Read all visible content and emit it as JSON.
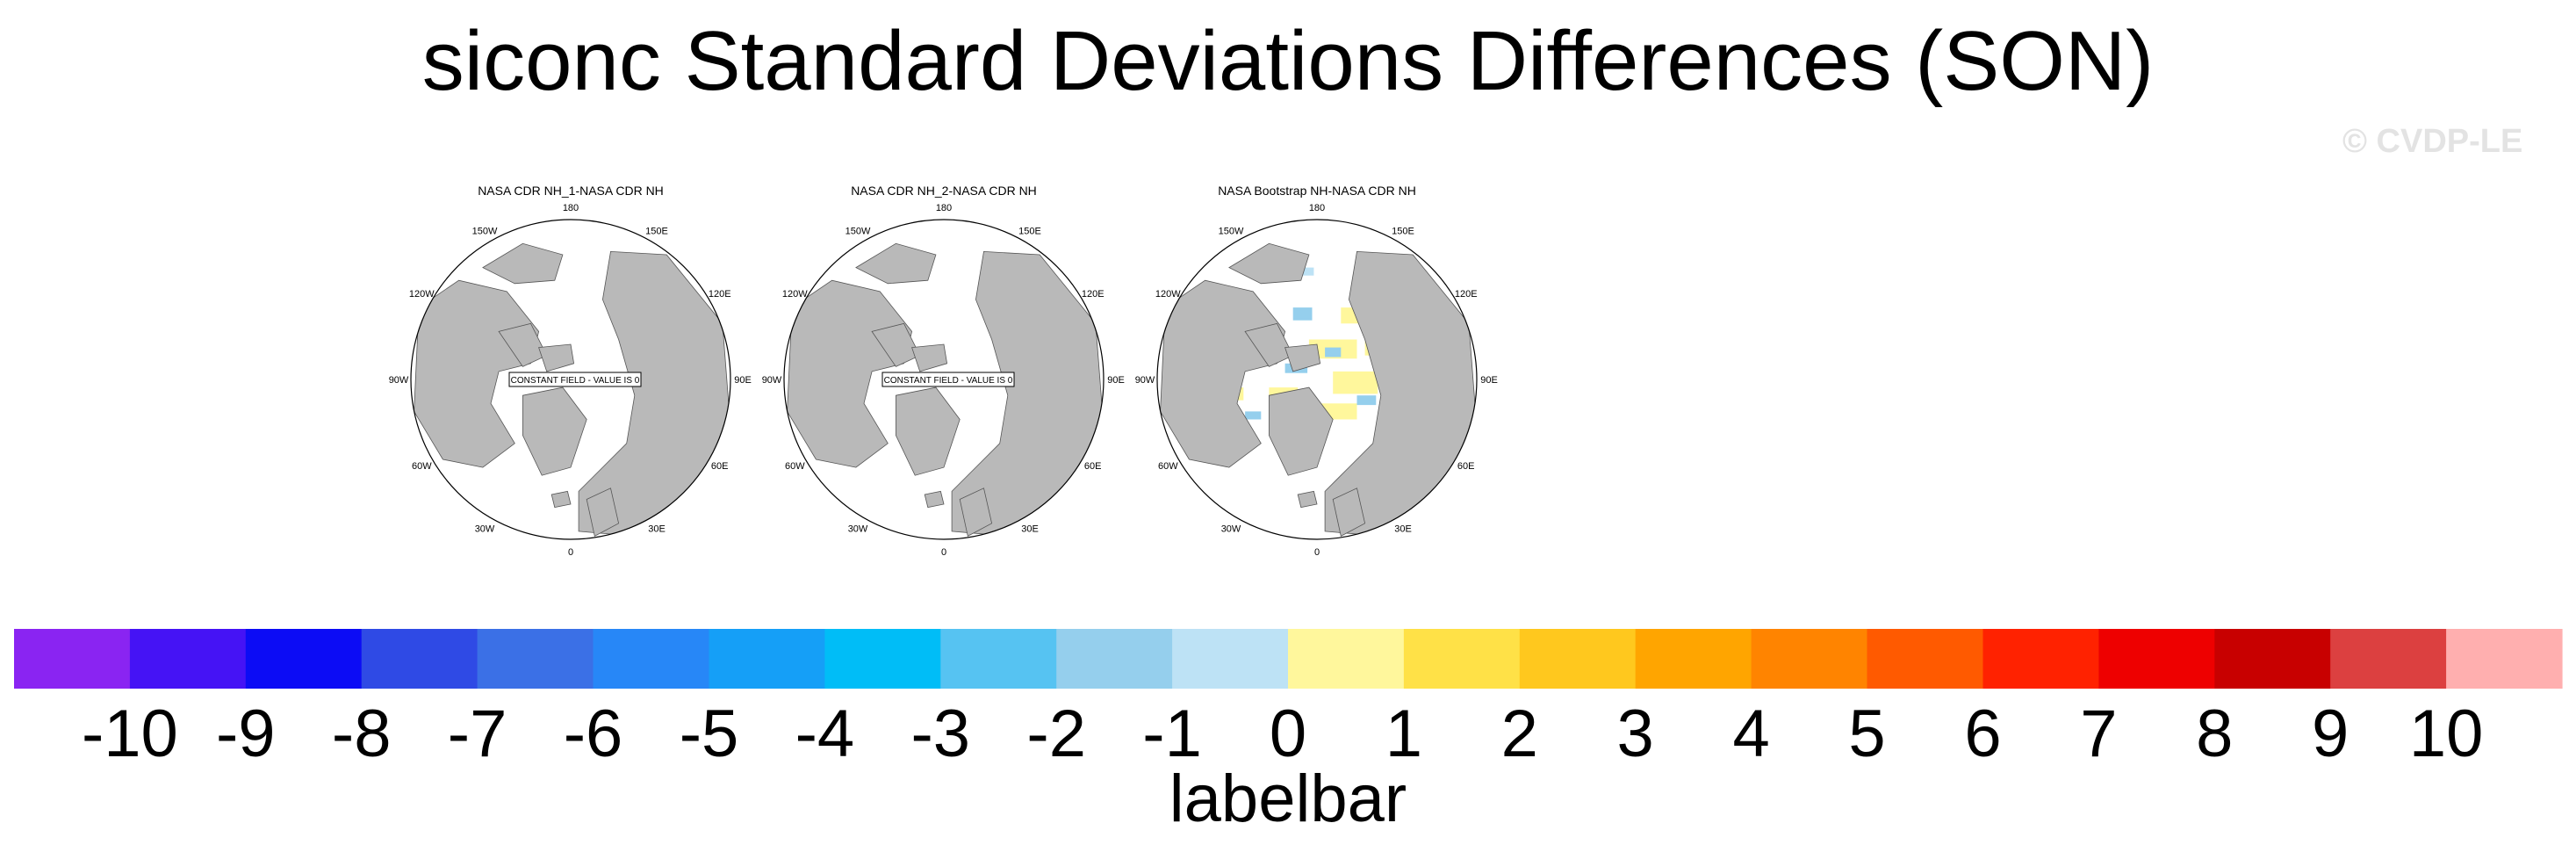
{
  "title": "siconc Standard Deviations Differences (SON)",
  "watermark": "© CVDP-LE",
  "chart_data": [
    {
      "type": "polar-map",
      "title": "NASA CDR NH_1-NASA CDR NH",
      "annotation": "CONSTANT FIELD - VALUE IS 0",
      "longitude_labels": [
        "180",
        "150E",
        "120E",
        "90E",
        "60E",
        "30E",
        "0",
        "30W",
        "60W",
        "90W",
        "120W",
        "150W"
      ],
      "anomaly_field": "none"
    },
    {
      "type": "polar-map",
      "title": "NASA CDR NH_2-NASA CDR NH",
      "annotation": "CONSTANT FIELD - VALUE IS 0",
      "longitude_labels": [
        "180",
        "150E",
        "120E",
        "90E",
        "60E",
        "30E",
        "0",
        "30W",
        "60W",
        "90W",
        "120W",
        "150W"
      ],
      "anomaly_field": "none"
    },
    {
      "type": "polar-map",
      "title": "NASA Bootstrap NH-NASA CDR NH",
      "annotation": "",
      "longitude_labels": [
        "180",
        "150E",
        "120E",
        "90E",
        "60E",
        "30E",
        "0",
        "30W",
        "60W",
        "90W",
        "120W",
        "150W"
      ],
      "anomaly_field": "small values mostly between -2 and 2 over the Arctic sea-ice region"
    }
  ],
  "colorbar": {
    "label": "labelbar",
    "tick_labels": [
      "-10",
      "-9",
      "-8",
      "-7",
      "-6",
      "-5",
      "-4",
      "-3",
      "-2",
      "-1",
      "0",
      "1",
      "2",
      "3",
      "4",
      "5",
      "6",
      "7",
      "8",
      "9",
      "10"
    ],
    "colors": [
      "#8a24f2",
      "#4513f5",
      "#0c0cf5",
      "#2f4ae5",
      "#3b70e6",
      "#2787f7",
      "#159ff7",
      "#00bdf7",
      "#56c3f2",
      "#95cfed",
      "#bde2f5",
      "#fff79c",
      "#ffe147",
      "#ffc81e",
      "#ffa500",
      "#ff8400",
      "#ff5a00",
      "#ff2200",
      "#ee0000",
      "#c80000",
      "#dc4040",
      "#ffafaf"
    ]
  }
}
